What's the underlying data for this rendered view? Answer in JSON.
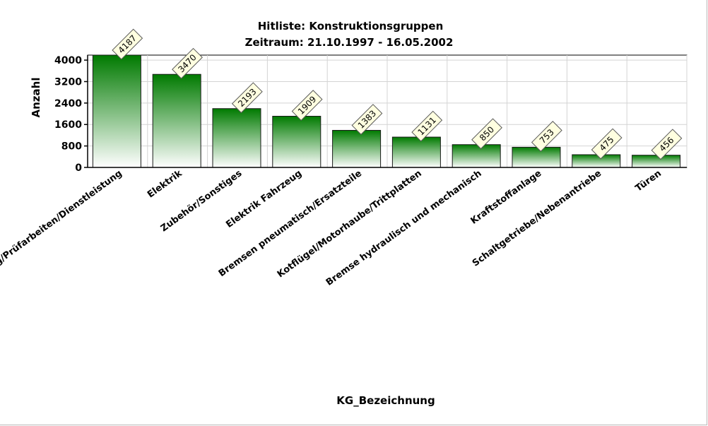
{
  "chart_data": {
    "type": "bar",
    "title": "Hitliste: Konstruktionsgruppen",
    "subtitle": "Zeitraum:  21.10.1997 - 16.05.2002",
    "xlabel": "KG_Bezeichnung",
    "ylabel": "Anzahl",
    "ylim": [
      0,
      4187
    ],
    "yticks": [
      0,
      800,
      1600,
      2400,
      3200,
      4000
    ],
    "grid": true,
    "categories": [
      "Wartung/Prüfarbeiten/Dienstleistung",
      "Elektrik",
      "Zubehör/Sonstiges",
      "Elektrik Fahrzeug",
      "Bremsen pneumatisch/Ersatzteile",
      "Kotflügel/Motorhaube/Trittplatten",
      "Bremse hydraulisch und mechanisch",
      "Kraftstoffanlage",
      "Schaltgetriebe/Nebenantriebe",
      "Türen"
    ],
    "values": [
      4187,
      3470,
      2193,
      1909,
      1383,
      1131,
      850,
      753,
      475,
      456
    ],
    "colors": {
      "bar_top": "#007a00",
      "bar_bottom": "#ffffff",
      "label_bg": "#ffffe0",
      "grid": "#d4d4d4"
    }
  }
}
